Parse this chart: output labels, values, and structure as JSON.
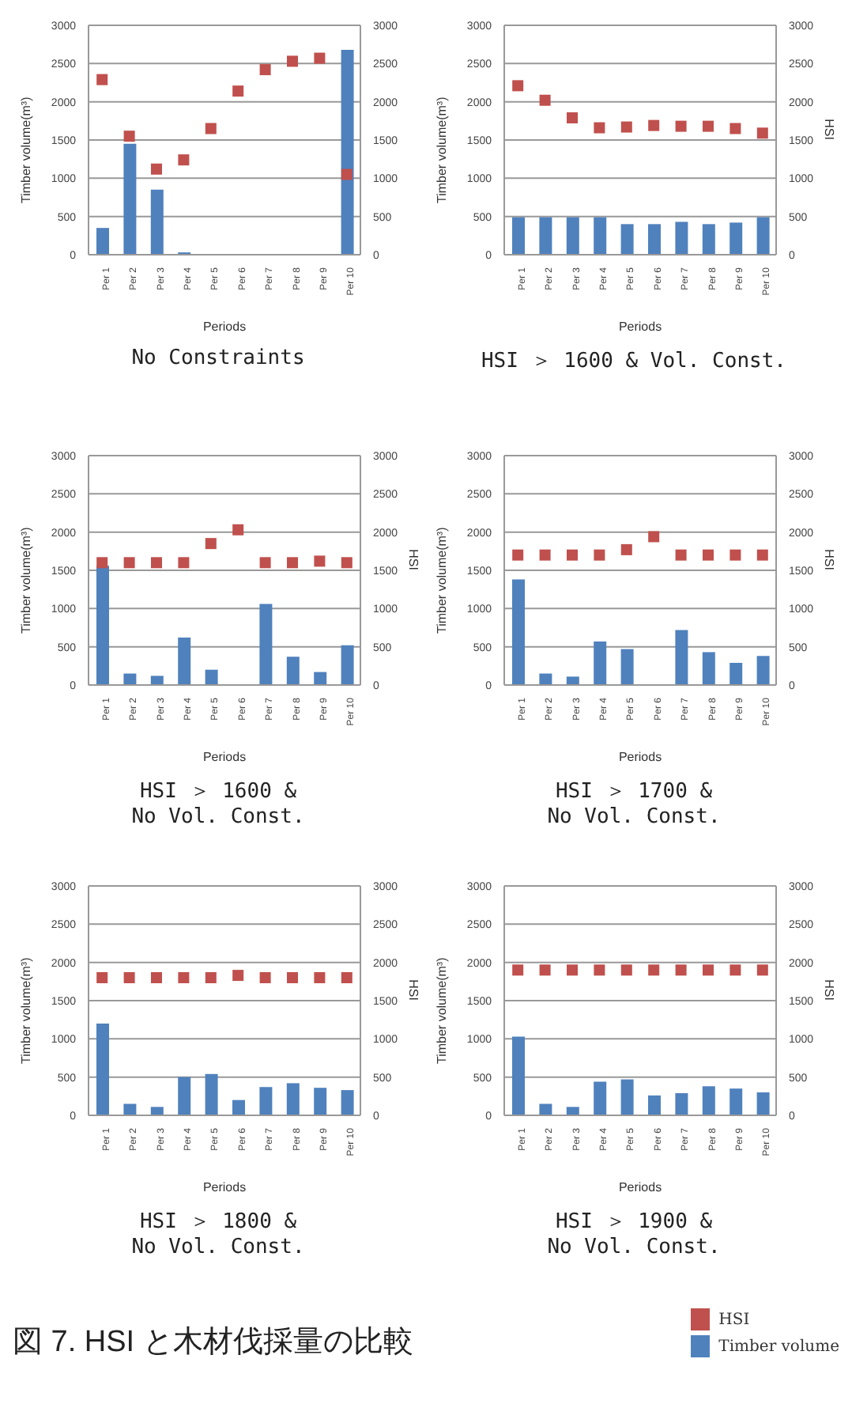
{
  "chart_data": [
    {
      "type": "bar",
      "title": "No Constraints",
      "xlabel": "Periods",
      "ylabel": "Timber volume(m³)",
      "categories": [
        "Per 1",
        "Per 2",
        "Per 3",
        "Per 4",
        "Per 5",
        "Per 6",
        "Per 7",
        "Per 8",
        "Per 9",
        "Per 10"
      ],
      "series": [
        {
          "color": "#4f81bd",
          "values": [
            350,
            1450,
            850,
            30,
            0,
            0,
            0,
            0,
            0,
            2680
          ]
        },
        {
          "type": "scatter",
          "axis": "y2",
          "color": "#c0504d",
          "values": [
            2290,
            1550,
            1120,
            1240,
            1650,
            2140,
            2420,
            2530,
            2570,
            1050
          ]
        }
      ],
      "ylim": [
        0,
        3000
      ],
      "yticks": [
        0,
        500,
        1000,
        1500,
        2000,
        2500,
        3000
      ],
      "y2lim": [
        0,
        3000
      ],
      "y2ticks": [
        0,
        500,
        1000,
        1500,
        2000,
        2500,
        3000
      ],
      "grid": "y",
      "marker": "square"
    },
    {
      "type": "bar",
      "title": "HSI ＞ 1600 & Vol. Const.",
      "xlabel": "Periods",
      "ylabel": "Timber volume(m³)",
      "y2label": "HSI",
      "categories": [
        "Per 1",
        "Per 2",
        "Per 3",
        "Per 4",
        "Per 5",
        "Per 6",
        "Per 7",
        "Per 8",
        "Per 9",
        "Per 10"
      ],
      "series": [
        {
          "color": "#4f81bd",
          "values": [
            490,
            490,
            490,
            490,
            400,
            400,
            430,
            400,
            420,
            490
          ]
        },
        {
          "type": "scatter",
          "axis": "y2",
          "color": "#c0504d",
          "values": [
            2210,
            2020,
            1790,
            1660,
            1670,
            1690,
            1680,
            1680,
            1650,
            1590
          ]
        }
      ],
      "ylim": [
        0,
        3000
      ],
      "yticks": [
        0,
        500,
        1000,
        1500,
        2000,
        2500,
        3000
      ],
      "y2lim": [
        0,
        3000
      ],
      "y2ticks": [
        0,
        500,
        1000,
        1500,
        2000,
        2500,
        3000
      ],
      "grid": "y",
      "marker": "square"
    },
    {
      "type": "bar",
      "title": "HSI ＞ 1600 &\nNo Vol. Const.",
      "xlabel": "Periods",
      "ylabel": "Timber volume(m³)",
      "y2label": "HSI",
      "categories": [
        "Per 1",
        "Per 2",
        "Per 3",
        "Per 4",
        "Per 5",
        "Per 6",
        "Per 7",
        "Per 8",
        "Per 9",
        "Per 10"
      ],
      "series": [
        {
          "color": "#4f81bd",
          "values": [
            1560,
            150,
            120,
            620,
            200,
            0,
            1060,
            370,
            170,
            520
          ]
        },
        {
          "type": "scatter",
          "axis": "y2",
          "color": "#c0504d",
          "values": [
            1600,
            1600,
            1600,
            1600,
            1850,
            2030,
            1600,
            1600,
            1620,
            1600
          ]
        }
      ],
      "ylim": [
        0,
        3000
      ],
      "yticks": [
        0,
        500,
        1000,
        1500,
        2000,
        2500,
        3000
      ],
      "y2lim": [
        0,
        3000
      ],
      "y2ticks": [
        0,
        500,
        1000,
        1500,
        2000,
        2500,
        3000
      ],
      "grid": "y",
      "marker": "square"
    },
    {
      "type": "bar",
      "title": "HSI ＞ 1700 &\nNo Vol. Const.",
      "xlabel": "Periods",
      "ylabel": "Timber volume(m³)",
      "y2label": "HSI",
      "categories": [
        "Per 1",
        "Per 2",
        "Per 3",
        "Per 4",
        "Per 5",
        "Per 6",
        "Per 7",
        "Per 8",
        "Per 9",
        "Per 10"
      ],
      "series": [
        {
          "color": "#4f81bd",
          "values": [
            1380,
            150,
            110,
            570,
            470,
            0,
            720,
            430,
            290,
            380
          ]
        },
        {
          "type": "scatter",
          "axis": "y2",
          "color": "#c0504d",
          "values": [
            1700,
            1700,
            1700,
            1700,
            1770,
            1940,
            1700,
            1700,
            1700,
            1700
          ]
        }
      ],
      "ylim": [
        0,
        3000
      ],
      "yticks": [
        0,
        500,
        1000,
        1500,
        2000,
        2500,
        3000
      ],
      "y2lim": [
        0,
        3000
      ],
      "y2ticks": [
        0,
        500,
        1000,
        1500,
        2000,
        2500,
        3000
      ],
      "grid": "y",
      "marker": "square"
    },
    {
      "type": "bar",
      "title": "HSI ＞ 1800 &\nNo Vol. Const.",
      "xlabel": "Periods",
      "ylabel": "Timber volume(m³)",
      "y2label": "HSI",
      "categories": [
        "Per 1",
        "Per 2",
        "Per 3",
        "Per 4",
        "Per 5",
        "Per 6",
        "Per 7",
        "Per 8",
        "Per 9",
        "Per 10"
      ],
      "series": [
        {
          "color": "#4f81bd",
          "values": [
            1200,
            150,
            110,
            500,
            540,
            200,
            370,
            420,
            360,
            330
          ]
        },
        {
          "type": "scatter",
          "axis": "y2",
          "color": "#c0504d",
          "values": [
            1800,
            1800,
            1800,
            1800,
            1800,
            1830,
            1800,
            1800,
            1800,
            1800
          ]
        }
      ],
      "ylim": [
        0,
        3000
      ],
      "yticks": [
        0,
        500,
        1000,
        1500,
        2000,
        2500,
        3000
      ],
      "y2lim": [
        0,
        3000
      ],
      "y2ticks": [
        0,
        500,
        1000,
        1500,
        2000,
        2500,
        3000
      ],
      "grid": "y",
      "marker": "square"
    },
    {
      "type": "bar",
      "title": "HSI ＞ 1900 &\nNo Vol. Const.",
      "xlabel": "Periods",
      "ylabel": "Timber volume(m³)",
      "y2label": "HSI",
      "categories": [
        "Per 1",
        "Per 2",
        "Per 3",
        "Per 4",
        "Per 5",
        "Per 6",
        "Per 7",
        "Per 8",
        "Per 9",
        "Per 10"
      ],
      "series": [
        {
          "name": "Timber volume",
          "color": "#4f81bd",
          "values": [
            1030,
            150,
            110,
            440,
            470,
            260,
            290,
            380,
            350,
            300
          ]
        },
        {
          "type": "scatter",
          "name": "HSI",
          "axis": "y2",
          "color": "#c0504d",
          "values": [
            1900,
            1900,
            1900,
            1900,
            1900,
            1900,
            1900,
            1900,
            1900,
            1900
          ]
        }
      ],
      "ylim": [
        0,
        3000
      ],
      "yticks": [
        0,
        500,
        1000,
        1500,
        2000,
        2500,
        3000
      ],
      "y2lim": [
        0,
        3000
      ],
      "y2ticks": [
        0,
        500,
        1000,
        1500,
        2000,
        2500,
        3000
      ],
      "grid": "y",
      "marker": "square",
      "legend": "bottom right",
      "annotations": [
        "図 7. HSI と木材伐採量の比較"
      ]
    }
  ]
}
